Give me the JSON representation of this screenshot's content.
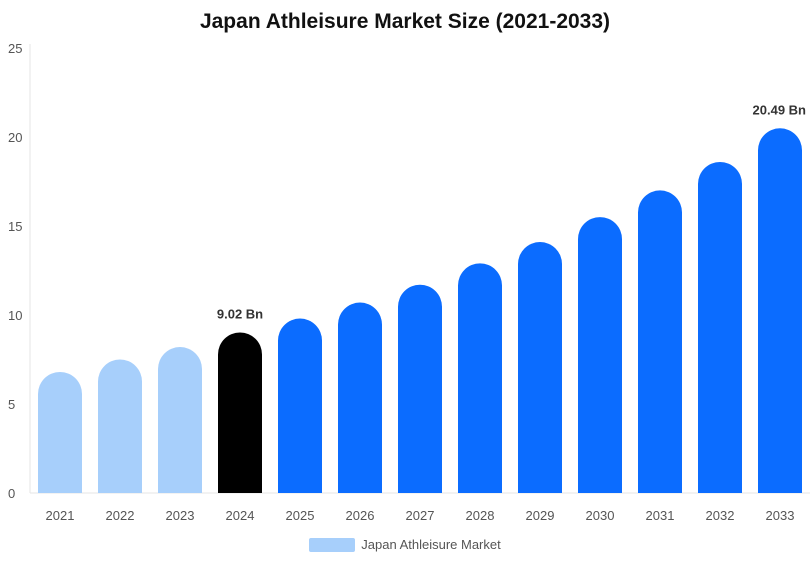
{
  "chart_data": {
    "type": "bar",
    "title": "Japan Athleisure Market Size (2021-2033)",
    "categories": [
      "2021",
      "2022",
      "2023",
      "2024",
      "2025",
      "2026",
      "2027",
      "2028",
      "2029",
      "2030",
      "2031",
      "2032",
      "2033"
    ],
    "series": [
      {
        "name": "Japan Athleisure Market",
        "values": [
          6.8,
          7.5,
          8.2,
          9.02,
          9.8,
          10.7,
          11.7,
          12.9,
          14.1,
          15.5,
          17.0,
          18.6,
          20.49
        ]
      }
    ],
    "bar_colors": [
      "#a7cffb",
      "#a7cffb",
      "#a7cffb",
      "#000000",
      "#0b6cff",
      "#0b6cff",
      "#0b6cff",
      "#0b6cff",
      "#0b6cff",
      "#0b6cff",
      "#0b6cff",
      "#0b6cff",
      "#0b6cff"
    ],
    "data_labels": [
      {
        "category": "2024",
        "text": "9.02 Bn"
      },
      {
        "category": "2033",
        "text": "20.49 Bn"
      }
    ],
    "yticks": [
      0,
      5,
      10,
      15,
      20,
      25
    ],
    "ylim": [
      0,
      25
    ],
    "xlabel": "",
    "ylabel": "",
    "grid": false,
    "legend_position": "bottom",
    "legend_color": "#a7cffb"
  }
}
